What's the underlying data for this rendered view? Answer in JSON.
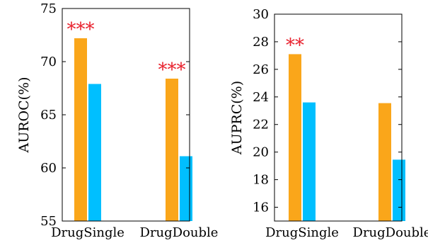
{
  "chart_data": [
    {
      "type": "bar",
      "categories": [
        "DrugSingle",
        "DrugDouble"
      ],
      "series": [
        {
          "values": [
            72.2,
            68.4
          ],
          "color": "#FAA61A"
        },
        {
          "values": [
            67.9,
            61.1
          ],
          "color": "#00BFFF"
        }
      ],
      "ylabel": "AUROC(%)",
      "ylim": [
        55,
        75
      ],
      "yticks": [
        55,
        60,
        65,
        70,
        75
      ],
      "annotations": [
        "***",
        "***"
      ],
      "annotation_color": "#E8222E",
      "grid": false,
      "legend": "none"
    },
    {
      "type": "bar",
      "categories": [
        "DrugSingle",
        "DrugDouble"
      ],
      "series": [
        {
          "values": [
            27.1,
            23.55
          ],
          "color": "#FAA61A"
        },
        {
          "values": [
            23.6,
            19.45
          ],
          "color": "#00BFFF"
        }
      ],
      "ylabel": "AUPRC(%)",
      "ylim": [
        15,
        30
      ],
      "yticks": [
        16,
        18,
        20,
        22,
        24,
        26,
        28,
        30
      ],
      "annotations": [
        "**",
        ""
      ],
      "annotation_color": "#E8222E",
      "grid": false,
      "legend": "none"
    }
  ]
}
